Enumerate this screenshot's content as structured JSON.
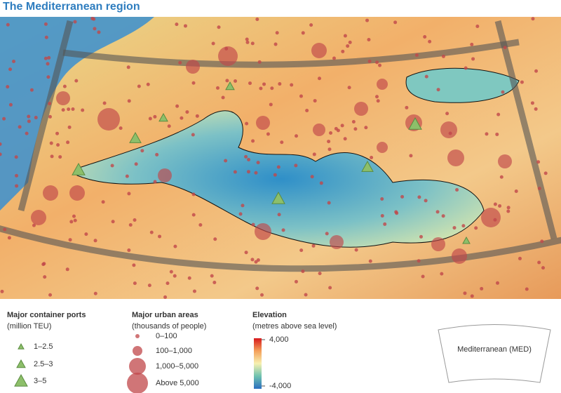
{
  "title": "The Mediterranean region",
  "legend": {
    "ports": {
      "title": "Major container ports",
      "subtitle": "(million TEU)",
      "items": [
        "1–2.5",
        "2.5–3",
        "3–5"
      ]
    },
    "urban": {
      "title": "Major urban areas",
      "subtitle": "(thousands of people)",
      "items": [
        "0–100",
        "100–1,000",
        "1,000–5,000",
        "Above 5,000"
      ]
    },
    "elevation": {
      "title": "Elevation",
      "subtitle": "(metres above sea level)",
      "ticks": [
        {
          "value": 4000,
          "label": "4,000"
        },
        {
          "value": -4000,
          "label": "-4,000"
        }
      ]
    },
    "region": {
      "label": "Mediterranean (MED)"
    }
  }
}
